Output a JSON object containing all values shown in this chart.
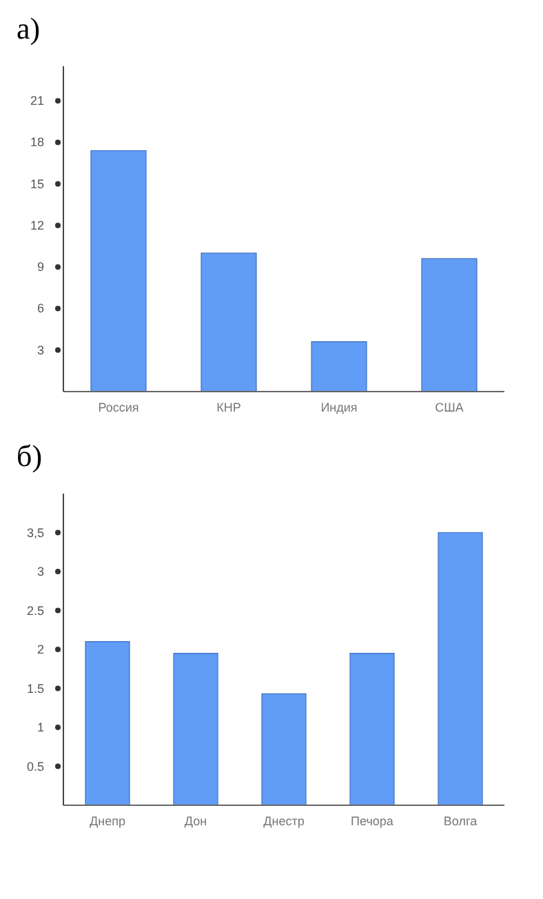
{
  "chart_data": [
    {
      "type": "bar",
      "title": "а)",
      "categories": [
        "Россия",
        "КНР",
        "Индия",
        "США"
      ],
      "values": [
        17.4,
        10,
        3.6,
        9.6
      ],
      "color": "#619cf6",
      "ylim": [
        0,
        23.5
      ],
      "yticks": [
        3,
        6,
        9,
        12,
        15,
        18,
        21
      ],
      "grid": false
    },
    {
      "type": "bar",
      "title": "б)",
      "categories": [
        "Днепр",
        "Дон",
        "Днестр",
        "Печора",
        "Волга"
      ],
      "values": [
        2.1,
        1.95,
        1.43,
        1.95,
        3.5
      ],
      "color": "#619cf6",
      "ylim": [
        0,
        4
      ],
      "yticks": [
        {
          "value": 0.5,
          "label": "0.5"
        },
        {
          "value": 1,
          "label": "1"
        },
        {
          "value": 1.5,
          "label": "1.5"
        },
        {
          "value": 2,
          "label": "2"
        },
        {
          "value": 2.5,
          "label": "2.5"
        },
        {
          "value": 3,
          "label": "3"
        },
        {
          "value": 3.5,
          "label": "3,5"
        }
      ],
      "grid": false
    }
  ]
}
